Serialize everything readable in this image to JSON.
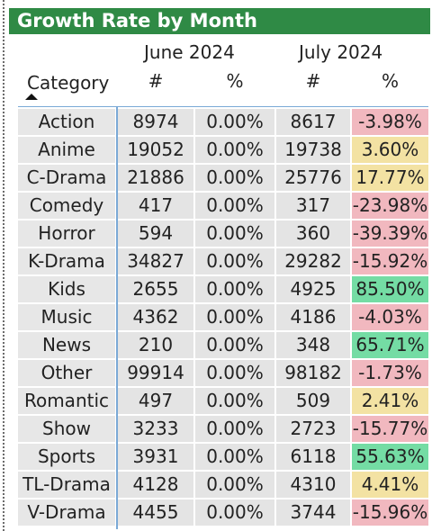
{
  "title": "Growth Rate by Month",
  "columns": {
    "category": "Category",
    "june": "June 2024",
    "july": "July 2024",
    "count": "#",
    "pct": "%"
  },
  "rows": [
    {
      "category": "Action",
      "june_n": "8974",
      "june_p": "0.00%",
      "july_n": "8617",
      "july_p": "-3.98%",
      "status": "negative"
    },
    {
      "category": "Anime",
      "june_n": "19052",
      "june_p": "0.00%",
      "july_n": "19738",
      "july_p": "3.60%",
      "status": "positive"
    },
    {
      "category": "C-Drama",
      "june_n": "21886",
      "june_p": "0.00%",
      "july_n": "25776",
      "july_p": "17.77%",
      "status": "positive"
    },
    {
      "category": "Comedy",
      "june_n": "417",
      "june_p": "0.00%",
      "july_n": "317",
      "july_p": "-23.98%",
      "status": "negative"
    },
    {
      "category": "Horror",
      "june_n": "594",
      "june_p": "0.00%",
      "july_n": "360",
      "july_p": "-39.39%",
      "status": "negative"
    },
    {
      "category": "K-Drama",
      "june_n": "34827",
      "june_p": "0.00%",
      "july_n": "29282",
      "july_p": "-15.92%",
      "status": "negative"
    },
    {
      "category": "Kids",
      "june_n": "2655",
      "june_p": "0.00%",
      "july_n": "4925",
      "july_p": "85.50%",
      "status": "high"
    },
    {
      "category": "Music",
      "june_n": "4362",
      "june_p": "0.00%",
      "july_n": "4186",
      "july_p": "-4.03%",
      "status": "negative"
    },
    {
      "category": "News",
      "june_n": "210",
      "june_p": "0.00%",
      "july_n": "348",
      "july_p": "65.71%",
      "status": "high"
    },
    {
      "category": "Other",
      "june_n": "99914",
      "june_p": "0.00%",
      "july_n": "98182",
      "july_p": "-1.73%",
      "status": "negative"
    },
    {
      "category": "Romantic",
      "june_n": "497",
      "june_p": "0.00%",
      "july_n": "509",
      "july_p": "2.41%",
      "status": "positive"
    },
    {
      "category": "Show",
      "june_n": "3233",
      "june_p": "0.00%",
      "july_n": "2723",
      "july_p": "-15.77%",
      "status": "negative"
    },
    {
      "category": "Sports",
      "june_n": "3931",
      "june_p": "0.00%",
      "july_n": "6118",
      "july_p": "55.63%",
      "status": "high"
    },
    {
      "category": "TL-Drama",
      "june_n": "4128",
      "june_p": "0.00%",
      "july_n": "4310",
      "july_p": "4.41%",
      "status": "positive"
    },
    {
      "category": "V-Drama",
      "june_n": "4455",
      "june_p": "0.00%",
      "july_n": "3744",
      "july_p": "-15.96%",
      "status": "negative"
    }
  ],
  "colors": {
    "title_bg": "#2f8a45",
    "negative": "#f1b8bf",
    "positive": "#f3e2a3",
    "high": "#74dca4",
    "neutral": "#e4e4e4"
  },
  "sort": {
    "column": "category",
    "direction": "ascending",
    "icon": "sort-ascending-icon"
  }
}
